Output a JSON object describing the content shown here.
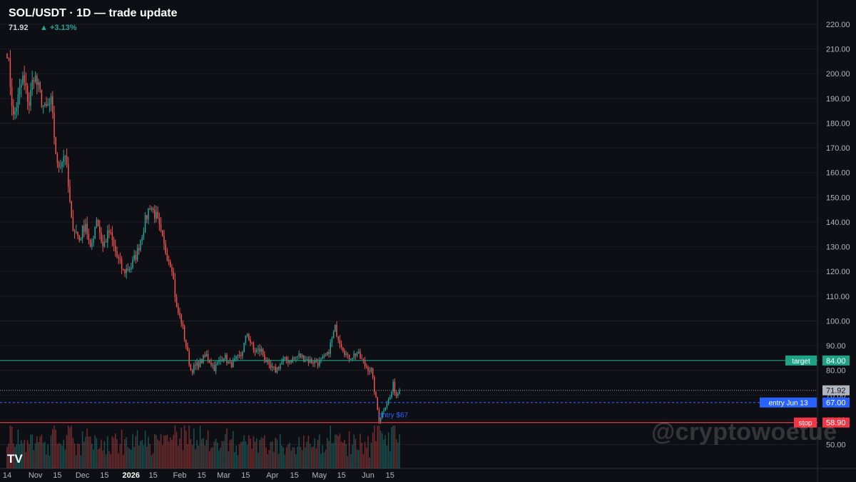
{
  "header": {
    "title": "SOL/USDT · 1D — trade update",
    "price": "71.92",
    "change": "▲ +3.13%"
  },
  "watermark": "@cryptowoetue",
  "logo": "TV",
  "colors": {
    "background": "#0e0f14",
    "up": "#26a69a",
    "down": "#ef5350",
    "target": "#1fa386",
    "entry": "#2962ff",
    "stop": "#f23645",
    "grid": "#1b1d24",
    "axis_text": "#b2b5be"
  },
  "chart_data": {
    "type": "candlestick",
    "title": "SOL/USDT · 1D — trade update",
    "y_axis": {
      "ylim": [
        45,
        225
      ],
      "ticks": [
        "50.00",
        "60.00",
        "70.00",
        "80.00",
        "90.00",
        "100.00",
        "110.00",
        "120.00",
        "130.00",
        "140.00",
        "150.00",
        "160.00",
        "170.00",
        "180.00",
        "190.00",
        "200.00",
        "210.00",
        "220.00"
      ]
    },
    "x_axis": {
      "tick_labels": [
        "14",
        "Nov",
        "15",
        "Dec",
        "15",
        "2026",
        "15",
        "Feb",
        "15",
        "Mar",
        "15",
        "Apr",
        "15",
        "May",
        "15",
        "Jun",
        "15"
      ],
      "bold_labels": [
        "2026"
      ]
    },
    "last_price": 71.92,
    "levels": [
      {
        "name": "target",
        "value": 84.0,
        "label": "target",
        "value_label": "84.00",
        "color": "#1fa386"
      },
      {
        "name": "entry",
        "value": 67.0,
        "label": "entry Jun 13",
        "value_label": "67.00",
        "color": "#2962ff"
      },
      {
        "name": "stop",
        "value": 58.9,
        "label": "stop",
        "value_label": "58.90",
        "color": "#f23645"
      }
    ],
    "last_price_label": "71.92",
    "annotations": [
      {
        "text": "entry $67",
        "date": "2026-06-13",
        "value": 67
      }
    ],
    "anchors": [
      [
        "2025-10-14",
        210
      ],
      [
        "2025-10-18",
        182
      ],
      [
        "2025-10-24",
        198
      ],
      [
        "2025-10-28",
        188
      ],
      [
        "2025-10-31",
        200
      ],
      [
        "2025-11-07",
        185
      ],
      [
        "2025-11-11",
        188
      ],
      [
        "2025-11-15",
        162
      ],
      [
        "2025-11-20",
        168
      ],
      [
        "2025-11-24",
        140
      ],
      [
        "2025-11-29",
        133
      ],
      [
        "2025-12-03",
        140
      ],
      [
        "2025-12-06",
        128
      ],
      [
        "2025-12-10",
        142
      ],
      [
        "2025-12-14",
        130
      ],
      [
        "2025-12-18",
        136
      ],
      [
        "2025-12-23",
        126
      ],
      [
        "2025-12-27",
        120
      ],
      [
        "2026-01-01",
        122
      ],
      [
        "2026-01-05",
        128
      ],
      [
        "2026-01-09",
        138
      ],
      [
        "2026-01-13",
        147
      ],
      [
        "2026-01-17",
        142
      ],
      [
        "2026-01-22",
        130
      ],
      [
        "2026-01-27",
        122
      ],
      [
        "2026-01-30",
        105
      ],
      [
        "2026-02-02",
        100
      ],
      [
        "2026-02-05",
        90
      ],
      [
        "2026-02-08",
        80
      ],
      [
        "2026-02-12",
        82
      ],
      [
        "2026-02-18",
        86
      ],
      [
        "2026-02-23",
        81
      ],
      [
        "2026-03-01",
        86
      ],
      [
        "2026-03-05",
        82
      ],
      [
        "2026-03-12",
        86
      ],
      [
        "2026-03-16",
        95
      ],
      [
        "2026-03-20",
        88
      ],
      [
        "2026-03-25",
        88
      ],
      [
        "2026-03-30",
        81
      ],
      [
        "2026-04-03",
        80
      ],
      [
        "2026-04-08",
        84
      ],
      [
        "2026-04-12",
        84
      ],
      [
        "2026-04-18",
        86
      ],
      [
        "2026-04-24",
        84
      ],
      [
        "2026-05-01",
        83
      ],
      [
        "2026-05-06",
        86
      ],
      [
        "2026-05-11",
        97
      ],
      [
        "2026-05-14",
        92
      ],
      [
        "2026-05-19",
        85
      ],
      [
        "2026-05-25",
        87
      ],
      [
        "2026-05-30",
        82
      ],
      [
        "2026-06-03",
        80
      ],
      [
        "2026-06-06",
        68
      ],
      [
        "2026-06-08",
        60
      ],
      [
        "2026-06-12",
        66
      ],
      [
        "2026-06-15",
        69
      ],
      [
        "2026-06-17",
        74
      ],
      [
        "2026-06-19",
        70
      ],
      [
        "2026-06-21",
        71.92
      ]
    ]
  }
}
